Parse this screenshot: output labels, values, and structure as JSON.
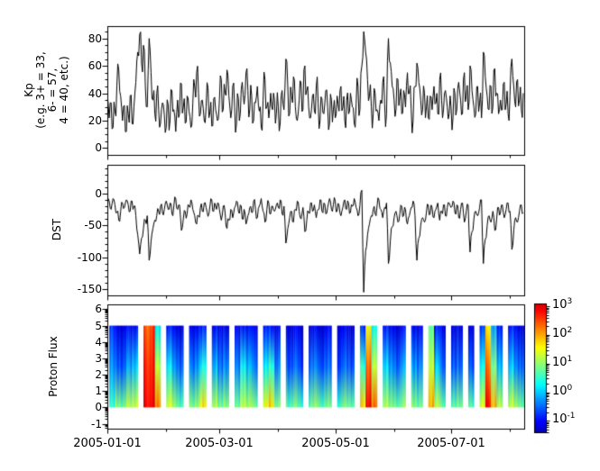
{
  "figure": {
    "background": "#ffffff",
    "axis_color": "#000000",
    "line_color": "#000000"
  },
  "x_axis": {
    "tick_labels": [
      "2005-01-01",
      "2005-03-01",
      "2005-05-01",
      "2005-07-01"
    ],
    "major_days": [
      0,
      59,
      120,
      181
    ],
    "minor_days": [
      31,
      90,
      151,
      212
    ],
    "day_span": 219.5
  },
  "chart_data": [
    {
      "type": "line",
      "name": "Kp",
      "ylabel_lines": [
        "Kp",
        "(e.g. 3+ = 33,",
        "6- = 57,",
        "4 = 40, etc.)"
      ],
      "ylim": [
        -5,
        89
      ],
      "yticks": [
        0,
        20,
        40,
        60,
        80
      ],
      "yminor_step": 5,
      "x_unit": "day_of_2005",
      "values_daily": [
        40,
        22,
        33,
        15,
        27,
        45,
        57,
        38,
        20,
        31,
        12,
        25,
        38,
        18,
        30,
        48,
        70,
        83,
        62,
        75,
        45,
        30,
        80,
        55,
        35,
        25,
        40,
        28,
        18,
        33,
        24,
        15,
        32,
        20,
        42,
        28,
        12,
        35,
        25,
        47,
        30,
        18,
        38,
        27,
        15,
        33,
        45,
        55,
        40,
        25,
        35,
        20,
        30,
        44,
        26,
        16,
        36,
        28,
        20,
        35,
        50,
        28,
        40,
        57,
        38,
        22,
        45,
        30,
        18,
        36,
        25,
        48,
        32,
        55,
        42,
        28,
        38,
        20,
        33,
        45,
        27,
        15,
        35,
        50,
        30,
        22,
        40,
        28,
        35,
        25,
        30,
        18,
        42,
        28,
        65,
        45,
        25,
        38,
        52,
        30,
        20,
        35,
        48,
        28,
        60,
        42,
        30,
        22,
        38,
        27,
        45,
        33,
        20,
        36,
        25,
        42,
        30,
        18,
        35,
        28,
        22,
        38,
        27,
        45,
        30,
        20,
        35,
        25,
        40,
        30,
        18,
        32,
        45,
        28,
        60,
        85,
        70,
        50,
        38,
        30,
        25,
        40,
        28,
        20,
        35,
        48,
        32,
        25,
        80,
        62,
        45,
        35,
        28,
        50,
        38,
        25,
        42,
        30,
        55,
        40,
        28,
        20,
        45,
        62,
        48,
        35,
        28,
        40,
        30,
        22,
        38,
        28,
        45,
        33,
        25,
        50,
        35,
        28,
        42,
        30,
        25,
        30,
        22,
        40,
        28,
        48,
        35,
        25,
        55,
        38,
        28,
        60,
        42,
        30,
        25,
        45,
        33,
        22,
        70,
        52,
        38,
        28,
        45,
        30,
        58,
        40,
        25,
        35,
        28,
        48,
        32,
        25,
        38,
        65,
        45,
        30,
        50,
        35,
        28,
        40
      ]
    },
    {
      "type": "line",
      "name": "DST",
      "ylabel_lines": [
        "DST"
      ],
      "ylim": [
        -160,
        45
      ],
      "yticks": [
        0,
        -50,
        -100,
        -150
      ],
      "yminor_step": 10,
      "x_unit": "day_of_2005",
      "values_daily": [
        -20,
        -12,
        -25,
        -8,
        -18,
        -30,
        -42,
        -28,
        -15,
        -22,
        -10,
        -18,
        -28,
        -12,
        -20,
        -35,
        -65,
        -95,
        -70,
        -55,
        -42,
        -35,
        -105,
        -75,
        -55,
        -42,
        -35,
        -28,
        -20,
        -30,
        -25,
        -12,
        -25,
        -15,
        -32,
        -20,
        -8,
        -25,
        -18,
        -58,
        -40,
        -28,
        -32,
        -20,
        -10,
        -25,
        -35,
        -48,
        -35,
        -22,
        -28,
        -15,
        -22,
        -36,
        -20,
        -10,
        -28,
        -20,
        -15,
        -25,
        -42,
        -20,
        -30,
        -55,
        -42,
        -25,
        -38,
        -22,
        -12,
        -28,
        -18,
        -40,
        -25,
        -48,
        -35,
        -22,
        -30,
        -12,
        -25,
        -38,
        -20,
        -8,
        -28,
        -45,
        -25,
        -15,
        -32,
        -20,
        -28,
        -18,
        -22,
        -10,
        -32,
        -20,
        -78,
        -55,
        -38,
        -28,
        -45,
        -25,
        -12,
        -28,
        -40,
        -22,
        -60,
        -42,
        -30,
        -15,
        -28,
        -18,
        -38,
        -25,
        -10,
        -28,
        -15,
        -32,
        -22,
        -8,
        -25,
        -18,
        -12,
        -28,
        -18,
        -35,
        -22,
        -10,
        -25,
        -15,
        -30,
        -20,
        -8,
        -22,
        -35,
        -18,
        5,
        -155,
        -90,
        -65,
        -48,
        -35,
        -25,
        -32,
        -20,
        -10,
        -25,
        -38,
        -22,
        -15,
        -110,
        -75,
        -52,
        -38,
        -28,
        -45,
        -32,
        -20,
        -35,
        -25,
        -48,
        -35,
        -22,
        -12,
        -35,
        -105,
        -70,
        -50,
        -38,
        -45,
        -30,
        -18,
        -32,
        -22,
        -38,
        -25,
        -15,
        -42,
        -28,
        -18,
        -35,
        -22,
        -15,
        -22,
        -12,
        -30,
        -18,
        -38,
        -25,
        -15,
        -45,
        -28,
        -18,
        -92,
        -60,
        -40,
        -28,
        -35,
        -22,
        -10,
        -110,
        -72,
        -50,
        -35,
        -45,
        -28,
        -58,
        -40,
        -22,
        -30,
        -18,
        -38,
        -25,
        -15,
        -28,
        -88,
        -58,
        -38,
        -45,
        -28,
        -18,
        -30
      ]
    },
    {
      "type": "heatmap",
      "name": "Proton Flux",
      "ylabel_lines": [
        "Proton Flux"
      ],
      "ylim": [
        -1.3,
        6.3
      ],
      "yticks": [
        6,
        5,
        4,
        3,
        2,
        1,
        0,
        -1
      ],
      "log_minor_ticks": true,
      "grid": {
        "day0": 1,
        "col_days": 3,
        "profile_y": [
          0,
          2.5,
          5
        ],
        "note": "each column = [log10 flux at y=0, y=2.5, y=5]; null = data gap",
        "columns": [
          [
            0.5,
            -0.3,
            -0.8
          ],
          [
            1.0,
            -0.5,
            -1.1
          ],
          [
            0.8,
            -0.6,
            -1.2
          ],
          [
            1.2,
            -0.2,
            -1.0
          ],
          [
            1.3,
            0,
            -1.0
          ],
          null,
          [
            2.9,
            2.7,
            2.4
          ],
          [
            3.0,
            2.8,
            2.6
          ],
          [
            2.2,
            1.2,
            0.2
          ],
          null,
          [
            1.4,
            0.2,
            -0.9
          ],
          [
            1.0,
            -0.3,
            -1.1
          ],
          [
            0.7,
            -0.5,
            -1.2
          ],
          null,
          [
            0.9,
            -0.4,
            -1.1
          ],
          [
            1.1,
            -0.2,
            -1.0
          ],
          [
            1.7,
            0.3,
            -0.9
          ],
          null,
          [
            1.2,
            -0.1,
            -1.0
          ],
          [
            0.8,
            -0.5,
            -1.2
          ],
          [
            1.0,
            -0.3,
            -1.1
          ],
          null,
          [
            0.8,
            -0.4,
            -1.1
          ],
          [
            1.3,
            0.3,
            -0.9
          ],
          [
            1.1,
            -0.1,
            -1.0
          ],
          [
            0.9,
            -0.4,
            -1.1
          ],
          null,
          [
            1.5,
            0.2,
            -0.9
          ],
          [
            1.8,
            0.5,
            -0.9
          ],
          [
            0.9,
            -0.4,
            -1.1
          ],
          null,
          [
            0.7,
            -0.6,
            -1.2
          ],
          [
            0.9,
            -0.5,
            -1.1
          ],
          [
            0.6,
            -0.7,
            -1.2
          ],
          null,
          [
            0.8,
            -0.5,
            -1.2
          ],
          [
            1.0,
            -0.4,
            -1.1
          ],
          [
            0.7,
            -0.6,
            -1.2
          ],
          [
            0.9,
            -0.5,
            -1.1
          ],
          null,
          [
            0.6,
            -0.7,
            -1.2
          ],
          [
            0.9,
            -0.5,
            -1.1
          ],
          [
            0.8,
            -0.6,
            -1.2
          ],
          null,
          [
            1.8,
            0.5,
            -0.8
          ],
          [
            3.0,
            2.4,
            1.5
          ],
          [
            2.3,
            1.2,
            0.3
          ],
          null,
          [
            1.2,
            0.1,
            -0.9
          ],
          [
            0.9,
            -0.3,
            -1.1
          ],
          [
            0.8,
            -0.5,
            -1.2
          ],
          [
            1.0,
            -0.2,
            -1.0
          ],
          null,
          [
            1.0,
            -0.2,
            -1.0
          ],
          [
            0.8,
            -0.4,
            -1.1
          ],
          null,
          [
            2.0,
            1.3,
            0.8
          ],
          [
            1.2,
            0,
            -0.9
          ],
          [
            0.8,
            -0.5,
            -1.1
          ],
          null,
          [
            0.7,
            -0.6,
            -1.2
          ],
          [
            0.9,
            -0.5,
            -1.1
          ],
          null,
          [
            0.7,
            -0.6,
            -1.2
          ],
          null,
          [
            1.4,
            0.3,
            -0.7
          ],
          [
            2.9,
            2.3,
            1.6
          ],
          [
            2.0,
            0.9,
            -0.2
          ],
          [
            1.2,
            -0.1,
            -0.9
          ],
          null,
          [
            1.3,
            0,
            -0.9
          ],
          [
            1.0,
            -0.4,
            -1.1
          ],
          [
            0.8,
            -0.5,
            -1.2
          ]
        ]
      },
      "colorbar": {
        "log_range": [
          -1.4,
          3.1
        ],
        "colormap": "jet",
        "ticks": [
          {
            "base": "10",
            "exp": "3",
            "v": 3
          },
          {
            "base": "10",
            "exp": "2",
            "v": 2
          },
          {
            "base": "10",
            "exp": "1",
            "v": 1
          },
          {
            "base": "10",
            "exp": "0",
            "v": 0
          },
          {
            "base": "10",
            "exp": "-1",
            "v": -1
          }
        ]
      }
    }
  ]
}
